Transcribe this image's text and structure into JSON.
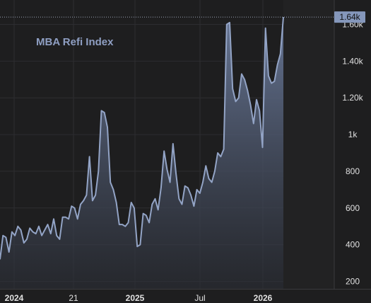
{
  "chart_data": {
    "type": "area",
    "title": "MBA Refi Index",
    "x_tick_labels": [
      "2024",
      "21",
      "2025",
      "Jul",
      "2026"
    ],
    "y_tick_labels": [
      "200",
      "400",
      "600",
      "800",
      "1k",
      "1.20k",
      "1.40k",
      "1.60k"
    ],
    "ylim": [
      150,
      1680
    ],
    "last_value_label": "1.64k",
    "last_value": 1640,
    "grid": true,
    "legend": "none",
    "series": [
      {
        "values": [
          320,
          450,
          440,
          360,
          470,
          450,
          500,
          480,
          410,
          430,
          490,
          470,
          460,
          500,
          450,
          480,
          510,
          460,
          540,
          450,
          430,
          550,
          550,
          540,
          610,
          600,
          540,
          620,
          640,
          670,
          880,
          640,
          670,
          800,
          1130,
          1120,
          1040,
          740,
          700,
          630,
          510,
          510,
          500,
          520,
          630,
          600,
          390,
          400,
          570,
          560,
          520,
          620,
          650,
          590,
          710,
          910,
          810,
          740,
          950,
          790,
          650,
          620,
          720,
          710,
          670,
          610,
          700,
          680,
          740,
          830,
          760,
          740,
          800,
          900,
          880,
          920,
          1600,
          1610,
          1250,
          1180,
          1200,
          1330,
          1300,
          1240,
          1160,
          1060,
          1190,
          1130,
          930,
          1580,
          1320,
          1280,
          1290,
          1380,
          1440,
          1640
        ]
      }
    ],
    "colors": {
      "background": "#1e1e1f",
      "grid": "#2d2d30",
      "line": "#93a4c6",
      "fill_top": "#6b7b9c",
      "fill_bottom": "#2b2e36",
      "title": "#8f9fc3",
      "axis_text": "#e0e0e0",
      "value_badge": "#8597bb",
      "value_badge_text": "#111111",
      "projection_band": "#222223"
    }
  }
}
